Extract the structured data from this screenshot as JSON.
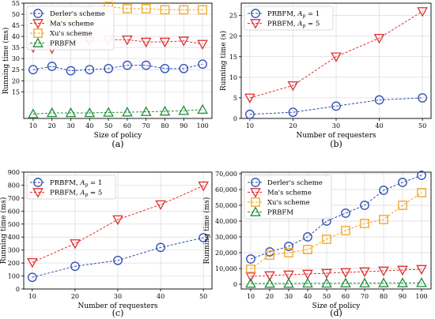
{
  "chart_data": [
    {
      "type": "line",
      "caption": "(a)",
      "xlabel": "Size of policy",
      "ylabel": "Running time (ms)",
      "x": [
        10,
        20,
        30,
        40,
        50,
        60,
        70,
        80,
        90,
        100
      ],
      "xlim": [
        5,
        105
      ],
      "ylim": [
        3,
        55
      ],
      "yticks": [
        15,
        20,
        25,
        30,
        35,
        40,
        45,
        50,
        55
      ],
      "grid": true,
      "legend": "top-left",
      "series": [
        {
          "name": "Derler's scheme",
          "color": "#2b4bb0",
          "marker": "circle",
          "values": [
            25,
            26.5,
            24.5,
            25,
            25.5,
            27,
            27,
            25.5,
            25.5,
            27.5
          ]
        },
        {
          "name": "Ma's scheme",
          "color": "#e03030",
          "marker": "triangle-down",
          "values": [
            35,
            34.5,
            37,
            38,
            38.5,
            38.5,
            37.5,
            37.5,
            38,
            36.5
          ]
        },
        {
          "name": "Xu's scheme",
          "color": "#f2a61c",
          "marker": "square",
          "values": [
            45.5,
            47,
            48,
            51,
            53.5,
            52.5,
            52.5,
            52,
            52,
            52
          ]
        },
        {
          "name": "PRBFM",
          "color": "#1f8f3a",
          "marker": "triangle-up",
          "values": [
            5,
            5.5,
            5.5,
            5.5,
            5.7,
            5.8,
            6,
            6.2,
            6.5,
            7
          ]
        }
      ]
    },
    {
      "type": "line",
      "caption": "(b)",
      "xlabel": "Number of requesters",
      "ylabel": "Running time (s)",
      "x": [
        10,
        20,
        30,
        40,
        50
      ],
      "xlim": [
        8,
        52
      ],
      "ylim": [
        0,
        28
      ],
      "yticks": [
        0,
        5,
        10,
        15,
        20,
        25
      ],
      "grid": true,
      "legend": "top-left",
      "series": [
        {
          "name": "PRBFM, A_p = 1",
          "label_main": "PRBFM, ",
          "label_var": "A",
          "label_sub": "p",
          "label_rest": " = 1",
          "color": "#2b4bb0",
          "marker": "circle",
          "values": [
            1,
            1.5,
            3,
            4.5,
            5
          ]
        },
        {
          "name": "PRBFM, A_p = 5",
          "label_main": "PRBFM, ",
          "label_var": "A",
          "label_sub": "p",
          "label_rest": " = 5",
          "color": "#e03030",
          "marker": "triangle-down",
          "values": [
            5,
            8,
            15,
            19.5,
            26
          ]
        }
      ]
    },
    {
      "type": "line",
      "caption": "(c)",
      "xlabel": "Number of requesters",
      "ylabel": "Running time (ms)",
      "x": [
        10,
        20,
        30,
        40,
        50
      ],
      "xlim": [
        8,
        52
      ],
      "ylim": [
        0,
        900
      ],
      "yticks": [
        0,
        100,
        200,
        300,
        400,
        500,
        600,
        700,
        800,
        900
      ],
      "grid": true,
      "legend": "top-left",
      "series": [
        {
          "name": "PRBFM, A_p = 1",
          "label_main": "PRBFM, ",
          "label_var": "A",
          "label_sub": "p",
          "label_rest": " = 1",
          "color": "#2b4bb0",
          "marker": "circle",
          "values": [
            90,
            175,
            220,
            320,
            395
          ]
        },
        {
          "name": "PRBFM, A_p = 5",
          "label_main": "PRBFM, ",
          "label_var": "A",
          "label_sub": "p",
          "label_rest": " = 5",
          "color": "#e03030",
          "marker": "triangle-down",
          "values": [
            205,
            350,
            535,
            650,
            795
          ]
        }
      ]
    },
    {
      "type": "line",
      "caption": "(d)",
      "xlabel": "Size of policy",
      "ylabel": "Running time (ms)",
      "x": [
        10,
        20,
        30,
        40,
        50,
        60,
        70,
        80,
        90,
        100
      ],
      "xlim": [
        5,
        105
      ],
      "ylim": [
        -3000,
        71000
      ],
      "yticks": [
        0,
        10000,
        20000,
        30000,
        40000,
        50000,
        60000,
        70000
      ],
      "ytick_labels": [
        "0",
        "10,000",
        "20,000",
        "30,000",
        "40,000",
        "50,000",
        "60,000",
        "70,000"
      ],
      "grid": true,
      "legend": "top-left",
      "series": [
        {
          "name": "Derler's scheme",
          "color": "#2b4bb0",
          "marker": "circle",
          "values": [
            16000,
            20500,
            24000,
            30000,
            40000,
            45000,
            50000,
            59500,
            64500,
            69000
          ]
        },
        {
          "name": "Ma's scheme",
          "color": "#e03030",
          "marker": "triangle-down",
          "values": [
            5000,
            5500,
            6000,
            6500,
            7000,
            7500,
            8000,
            8500,
            9000,
            9500
          ]
        },
        {
          "name": "Xu's scheme",
          "color": "#f2a61c",
          "marker": "square",
          "values": [
            9500,
            18500,
            20000,
            22000,
            28500,
            34000,
            38500,
            41000,
            50000,
            58000
          ]
        },
        {
          "name": "PRBFM",
          "color": "#1f8f3a",
          "marker": "triangle-up",
          "values": [
            500,
            500,
            500,
            600,
            600,
            700,
            700,
            800,
            800,
            900
          ]
        }
      ]
    }
  ]
}
